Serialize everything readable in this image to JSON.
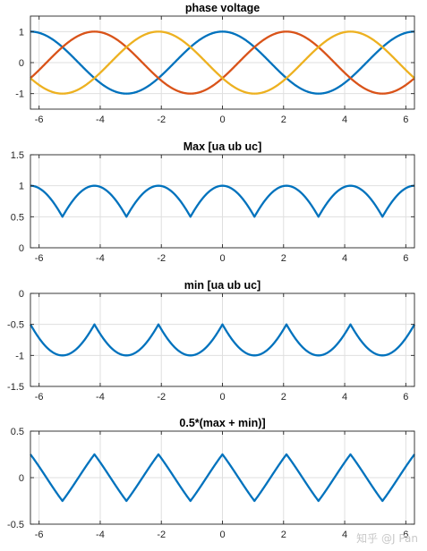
{
  "chart_data": [
    {
      "type": "line",
      "title": "phase voltage",
      "xlim": [
        -6.2832,
        6.2832
      ],
      "ylim": [
        -1.5,
        1.5
      ],
      "xticks": [
        -6,
        -4,
        -2,
        0,
        2,
        4,
        6
      ],
      "yticks": [
        -1,
        0,
        1
      ],
      "grid": true,
      "series": [
        {
          "expr": "cos(x)",
          "color": "#0072BD"
        },
        {
          "expr": "cos(x - 2*pi/3)",
          "color": "#D95319"
        },
        {
          "expr": "cos(x + 2*pi/3)",
          "color": "#EDB120"
        }
      ]
    },
    {
      "type": "line",
      "title": "Max [ua ub uc]",
      "xlim": [
        -6.2832,
        6.2832
      ],
      "ylim": [
        0,
        1.5
      ],
      "xticks": [
        -6,
        -4,
        -2,
        0,
        2,
        4,
        6
      ],
      "yticks": [
        0,
        0.5,
        1,
        1.5
      ],
      "grid": true,
      "series": [
        {
          "expr": "max(ua, ub, uc)",
          "color": "#0072BD"
        }
      ]
    },
    {
      "type": "line",
      "title": "min [ua ub uc]",
      "xlim": [
        -6.2832,
        6.2832
      ],
      "ylim": [
        -1.5,
        0
      ],
      "xticks": [
        -6,
        -4,
        -2,
        0,
        2,
        4,
        6
      ],
      "yticks": [
        -1.5,
        -1,
        -0.5,
        0
      ],
      "grid": true,
      "series": [
        {
          "expr": "min(ua, ub, uc)",
          "color": "#0072BD"
        }
      ]
    },
    {
      "type": "line",
      "title": "0.5*(max + min)]",
      "xlim": [
        -6.2832,
        6.2832
      ],
      "ylim": [
        -0.5,
        0.5
      ],
      "xticks": [
        -6,
        -4,
        -2,
        0,
        2,
        4,
        6
      ],
      "yticks": [
        -0.5,
        0,
        0.5
      ],
      "grid": true,
      "series": [
        {
          "expr": "0.5*(max + min)",
          "color": "#0072BD"
        }
      ]
    }
  ],
  "watermark": "知乎 @J Pan"
}
